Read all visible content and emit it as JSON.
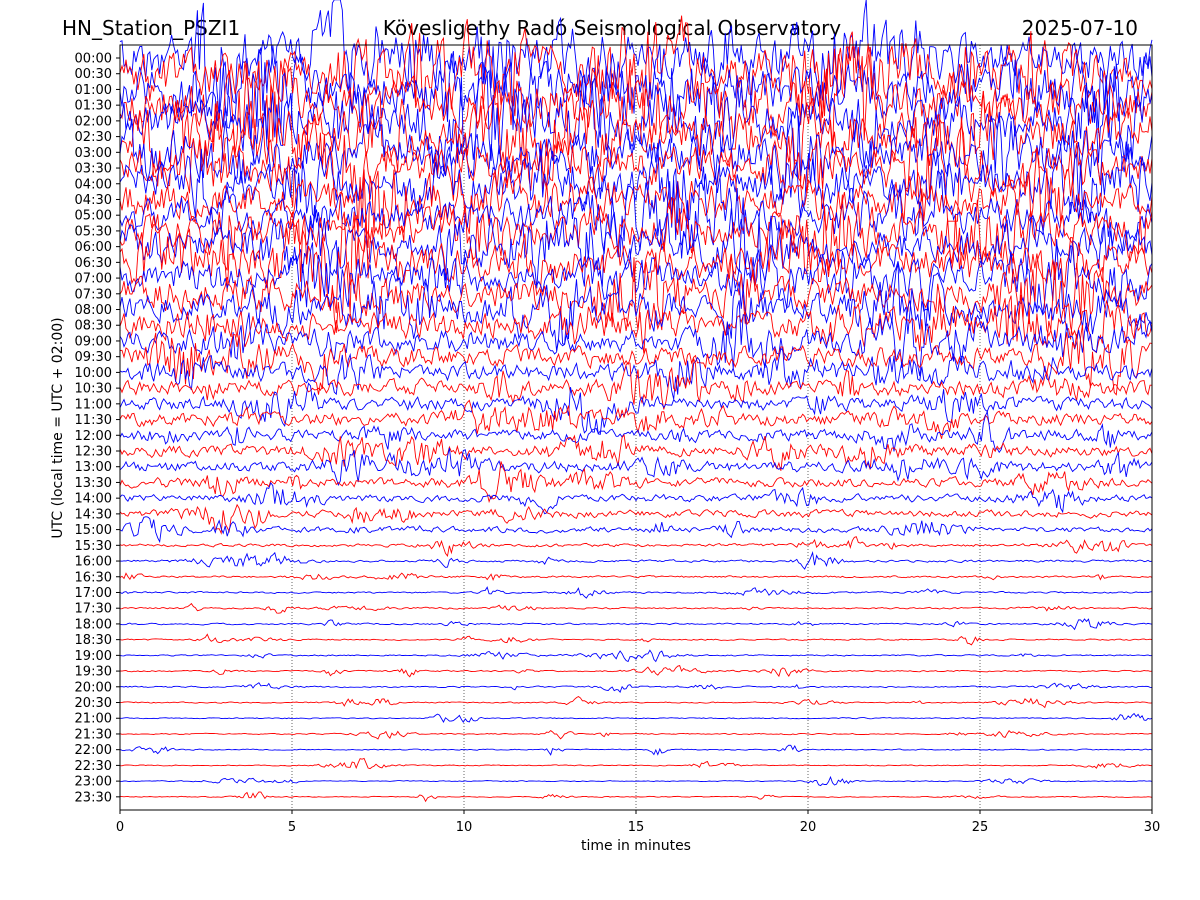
{
  "header": {
    "station": "HN_Station_PSZI1",
    "observatory": "Kövesligethy Radó Seismological Observatory",
    "date": "2025-07-10"
  },
  "chart_data": {
    "type": "line",
    "title": "Kövesligethy Radó Seismological Observatory",
    "xlabel": "time in minutes",
    "ylabel": "UTC (local time = UTC + 02:00)",
    "xlim": [
      0,
      30
    ],
    "x_ticks": [
      "0",
      "5",
      "10",
      "15",
      "20",
      "25",
      "30"
    ],
    "grid": "vertical dotted lines at 5-minute intervals",
    "trace_colors": [
      "#0000ff",
      "#ff0000"
    ],
    "rows": [
      {
        "label": "00:00",
        "activity": 1.0
      },
      {
        "label": "00:30",
        "activity": 1.0
      },
      {
        "label": "01:00",
        "activity": 1.0
      },
      {
        "label": "01:30",
        "activity": 1.0
      },
      {
        "label": "02:00",
        "activity": 1.0
      },
      {
        "label": "02:30",
        "activity": 1.0
      },
      {
        "label": "03:00",
        "activity": 0.95
      },
      {
        "label": "03:30",
        "activity": 0.9
      },
      {
        "label": "04:00",
        "activity": 0.9
      },
      {
        "label": "04:30",
        "activity": 0.85
      },
      {
        "label": "05:00",
        "activity": 0.85
      },
      {
        "label": "05:30",
        "activity": 0.85
      },
      {
        "label": "06:00",
        "activity": 0.85
      },
      {
        "label": "06:30",
        "activity": 0.85
      },
      {
        "label": "07:00",
        "activity": 0.8
      },
      {
        "label": "07:30",
        "activity": 0.8
      },
      {
        "label": "08:00",
        "activity": 0.75
      },
      {
        "label": "08:30",
        "activity": 0.7
      },
      {
        "label": "09:00",
        "activity": 0.65
      },
      {
        "label": "09:30",
        "activity": 0.6
      },
      {
        "label": "10:00",
        "activity": 0.55
      },
      {
        "label": "10:30",
        "activity": 0.5
      },
      {
        "label": "11:00",
        "activity": 0.45
      },
      {
        "label": "11:30",
        "activity": 0.45
      },
      {
        "label": "12:00",
        "activity": 0.4
      },
      {
        "label": "12:30",
        "activity": 0.4
      },
      {
        "label": "13:00",
        "activity": 0.4
      },
      {
        "label": "13:30",
        "activity": 0.35
      },
      {
        "label": "14:00",
        "activity": 0.3
      },
      {
        "label": "14:30",
        "activity": 0.3
      },
      {
        "label": "15:00",
        "activity": 0.25
      },
      {
        "label": "15:30",
        "activity": 0.15
      },
      {
        "label": "16:00",
        "activity": 0.12
      },
      {
        "label": "16:30",
        "activity": 0.1
      },
      {
        "label": "17:00",
        "activity": 0.08
      },
      {
        "label": "17:30",
        "activity": 0.08
      },
      {
        "label": "18:00",
        "activity": 0.08
      },
      {
        "label": "18:30",
        "activity": 0.06
      },
      {
        "label": "19:00",
        "activity": 0.06
      },
      {
        "label": "19:30",
        "activity": 0.06
      },
      {
        "label": "20:00",
        "activity": 0.07
      },
      {
        "label": "20:30",
        "activity": 0.05
      },
      {
        "label": "21:00",
        "activity": 0.04
      },
      {
        "label": "21:30",
        "activity": 0.04
      },
      {
        "label": "22:00",
        "activity": 0.04
      },
      {
        "label": "22:30",
        "activity": 0.03
      },
      {
        "label": "23:00",
        "activity": 0.02
      },
      {
        "label": "23:30",
        "activity": 0.02
      }
    ]
  }
}
